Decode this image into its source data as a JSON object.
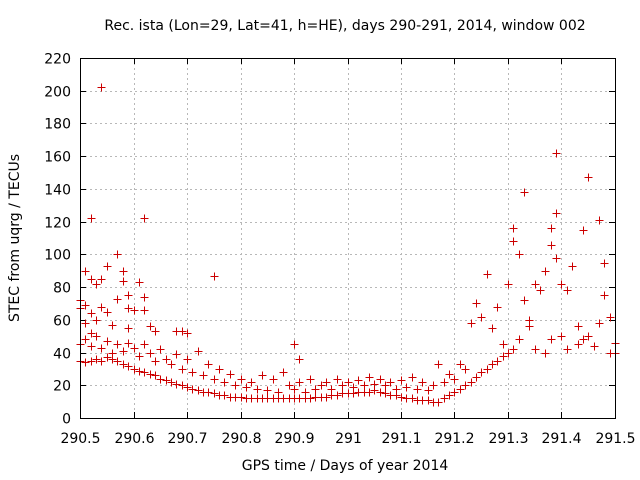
{
  "chart_data": {
    "type": "scatter",
    "title": "Rec. ista (Lon=29, Lat=41, h=HE), days 290-291, 2014, window 002",
    "xlabel": "GPS time / Days of year 2014",
    "ylabel": "STEC from uqrg / TECUs",
    "xlim": [
      290.5,
      291.5
    ],
    "ylim": [
      0,
      220
    ],
    "x_ticks": [
      290.5,
      290.6,
      290.7,
      290.8,
      290.9,
      291,
      291.1,
      291.2,
      291.3,
      291.4,
      291.5
    ],
    "x_tick_labels": [
      "290.5",
      "290.6",
      "290.7",
      "290.8",
      "290.9",
      "291",
      "291.1",
      "291.2",
      "291.3",
      "291.4",
      "291.5"
    ],
    "y_ticks": [
      0,
      20,
      40,
      60,
      80,
      100,
      120,
      140,
      160,
      180,
      200,
      220
    ],
    "y_tick_labels": [
      "0",
      "20",
      "40",
      "60",
      "80",
      "100",
      "120",
      "140",
      "160",
      "180",
      "200",
      "220"
    ],
    "grid": true,
    "marker": "+",
    "color": "#cc0000",
    "points": [
      [
        290.5,
        72
      ],
      [
        290.5,
        67
      ],
      [
        290.51,
        58
      ],
      [
        290.51,
        90
      ],
      [
        290.51,
        69
      ],
      [
        290.52,
        52
      ],
      [
        290.52,
        64
      ],
      [
        290.52,
        122
      ],
      [
        290.52,
        85
      ],
      [
        290.53,
        82
      ],
      [
        290.53,
        60
      ],
      [
        290.54,
        85
      ],
      [
        290.54,
        202
      ],
      [
        290.54,
        68
      ],
      [
        290.55,
        93
      ],
      [
        290.55,
        65
      ],
      [
        290.56,
        57
      ],
      [
        290.57,
        100
      ],
      [
        290.57,
        73
      ],
      [
        290.58,
        90
      ],
      [
        290.58,
        84
      ],
      [
        290.59,
        75
      ],
      [
        290.59,
        67
      ],
      [
        290.59,
        55
      ],
      [
        290.6,
        66
      ],
      [
        290.61,
        83
      ],
      [
        290.62,
        74
      ],
      [
        290.62,
        66
      ],
      [
        290.62,
        122
      ],
      [
        290.63,
        56
      ],
      [
        290.64,
        53
      ],
      [
        290.68,
        53
      ],
      [
        290.69,
        53
      ],
      [
        290.7,
        52
      ],
      [
        290.75,
        87
      ],
      [
        290.9,
        45
      ],
      [
        290.91,
        36
      ],
      [
        290.5,
        35
      ],
      [
        290.5,
        45
      ],
      [
        290.51,
        34
      ],
      [
        290.51,
        48
      ],
      [
        290.52,
        35
      ],
      [
        290.52,
        44
      ],
      [
        290.53,
        36
      ],
      [
        290.53,
        50
      ],
      [
        290.54,
        35
      ],
      [
        290.54,
        43
      ],
      [
        290.55,
        37
      ],
      [
        290.55,
        47
      ],
      [
        290.56,
        36
      ],
      [
        290.56,
        40
      ],
      [
        290.57,
        35
      ],
      [
        290.57,
        45
      ],
      [
        290.58,
        33
      ],
      [
        290.58,
        41
      ],
      [
        290.59,
        32
      ],
      [
        290.59,
        46
      ],
      [
        290.6,
        30
      ],
      [
        290.6,
        43
      ],
      [
        290.61,
        29
      ],
      [
        290.61,
        38
      ],
      [
        290.62,
        28
      ],
      [
        290.62,
        45
      ],
      [
        290.63,
        27
      ],
      [
        290.63,
        40
      ],
      [
        290.64,
        26
      ],
      [
        290.64,
        35
      ],
      [
        290.65,
        24
      ],
      [
        290.65,
        42
      ],
      [
        290.66,
        23
      ],
      [
        290.66,
        36
      ],
      [
        290.67,
        22
      ],
      [
        290.67,
        33
      ],
      [
        290.68,
        21
      ],
      [
        290.68,
        39
      ],
      [
        290.69,
        20
      ],
      [
        290.69,
        30
      ],
      [
        290.7,
        19
      ],
      [
        290.7,
        36
      ],
      [
        290.71,
        18
      ],
      [
        290.71,
        28
      ],
      [
        290.72,
        17
      ],
      [
        290.72,
        41
      ],
      [
        290.73,
        16
      ],
      [
        290.73,
        26
      ],
      [
        290.74,
        16
      ],
      [
        290.74,
        33
      ],
      [
        290.75,
        15
      ],
      [
        290.75,
        24
      ],
      [
        290.76,
        14
      ],
      [
        290.76,
        30
      ],
      [
        290.77,
        14
      ],
      [
        290.77,
        22
      ],
      [
        290.78,
        13
      ],
      [
        290.78,
        27
      ],
      [
        290.79,
        13
      ],
      [
        290.79,
        20
      ],
      [
        290.8,
        13
      ],
      [
        290.8,
        24
      ],
      [
        290.81,
        12
      ],
      [
        290.81,
        19
      ],
      [
        290.82,
        12
      ],
      [
        290.82,
        22
      ],
      [
        290.83,
        12
      ],
      [
        290.83,
        18
      ],
      [
        290.84,
        12
      ],
      [
        290.84,
        26
      ],
      [
        290.85,
        12
      ],
      [
        290.85,
        17
      ],
      [
        290.86,
        12
      ],
      [
        290.86,
        24
      ],
      [
        290.87,
        12
      ],
      [
        290.87,
        16
      ],
      [
        290.88,
        12
      ],
      [
        290.88,
        28
      ],
      [
        290.89,
        12
      ],
      [
        290.89,
        20
      ],
      [
        290.9,
        12
      ],
      [
        290.9,
        18
      ],
      [
        290.91,
        12
      ],
      [
        290.91,
        22
      ],
      [
        290.92,
        12
      ],
      [
        290.92,
        16
      ],
      [
        290.93,
        12
      ],
      [
        290.93,
        24
      ],
      [
        290.94,
        13
      ],
      [
        290.94,
        18
      ],
      [
        290.95,
        13
      ],
      [
        290.95,
        20
      ],
      [
        290.96,
        13
      ],
      [
        290.96,
        22
      ],
      [
        290.97,
        14
      ],
      [
        290.97,
        18
      ],
      [
        290.98,
        14
      ],
      [
        290.98,
        24
      ],
      [
        290.99,
        15
      ],
      [
        290.99,
        20
      ],
      [
        291.0,
        15
      ],
      [
        291.0,
        22
      ],
      [
        291.01,
        15
      ],
      [
        291.01,
        19
      ],
      [
        291.02,
        16
      ],
      [
        291.02,
        23
      ],
      [
        291.03,
        16
      ],
      [
        291.03,
        20
      ],
      [
        291.04,
        16
      ],
      [
        291.04,
        25
      ],
      [
        291.05,
        17
      ],
      [
        291.05,
        21
      ],
      [
        291.06,
        16
      ],
      [
        291.06,
        24
      ],
      [
        291.07,
        15
      ],
      [
        291.07,
        20
      ],
      [
        291.08,
        14
      ],
      [
        291.08,
        22
      ],
      [
        291.09,
        14
      ],
      [
        291.09,
        18
      ],
      [
        291.1,
        13
      ],
      [
        291.1,
        23
      ],
      [
        291.11,
        12
      ],
      [
        291.11,
        19
      ],
      [
        291.12,
        12
      ],
      [
        291.12,
        25
      ],
      [
        291.13,
        11
      ],
      [
        291.13,
        18
      ],
      [
        291.14,
        11
      ],
      [
        291.14,
        22
      ],
      [
        291.15,
        11
      ],
      [
        291.15,
        17
      ],
      [
        291.16,
        10
      ],
      [
        291.16,
        20
      ],
      [
        291.17,
        10
      ],
      [
        291.17,
        33
      ],
      [
        291.18,
        12
      ],
      [
        291.18,
        22
      ],
      [
        291.19,
        14
      ],
      [
        291.19,
        27
      ],
      [
        291.2,
        16
      ],
      [
        291.2,
        24
      ],
      [
        291.21,
        18
      ],
      [
        291.21,
        33
      ],
      [
        291.22,
        20
      ],
      [
        291.22,
        30
      ],
      [
        291.23,
        22
      ],
      [
        291.23,
        58
      ],
      [
        291.24,
        25
      ],
      [
        291.24,
        70
      ],
      [
        291.25,
        28
      ],
      [
        291.25,
        62
      ],
      [
        291.26,
        30
      ],
      [
        291.26,
        88
      ],
      [
        291.27,
        33
      ],
      [
        291.27,
        55
      ],
      [
        291.28,
        35
      ],
      [
        291.28,
        68
      ],
      [
        291.29,
        38
      ],
      [
        291.29,
        45
      ],
      [
        291.3,
        40
      ],
      [
        291.3,
        82
      ],
      [
        291.31,
        42
      ],
      [
        291.31,
        108
      ],
      [
        291.31,
        116
      ],
      [
        291.32,
        48
      ],
      [
        291.32,
        100
      ],
      [
        291.33,
        138
      ],
      [
        291.33,
        72
      ],
      [
        291.34,
        60
      ],
      [
        291.34,
        56
      ],
      [
        291.35,
        42
      ],
      [
        291.35,
        82
      ],
      [
        291.36,
        78
      ],
      [
        291.37,
        90
      ],
      [
        291.37,
        40
      ],
      [
        291.38,
        106
      ],
      [
        291.38,
        116
      ],
      [
        291.38,
        48
      ],
      [
        291.39,
        162
      ],
      [
        291.39,
        125
      ],
      [
        291.39,
        98
      ],
      [
        291.4,
        82
      ],
      [
        291.4,
        50
      ],
      [
        291.41,
        78
      ],
      [
        291.41,
        42
      ],
      [
        291.42,
        93
      ],
      [
        291.43,
        56
      ],
      [
        291.43,
        45
      ],
      [
        291.44,
        115
      ],
      [
        291.44,
        48
      ],
      [
        291.45,
        147
      ],
      [
        291.45,
        50
      ],
      [
        291.46,
        44
      ],
      [
        291.47,
        121
      ],
      [
        291.47,
        58
      ],
      [
        291.48,
        95
      ],
      [
        291.48,
        75
      ],
      [
        291.49,
        62
      ],
      [
        291.49,
        40
      ],
      [
        291.5,
        40
      ],
      [
        291.5,
        46
      ]
    ]
  }
}
